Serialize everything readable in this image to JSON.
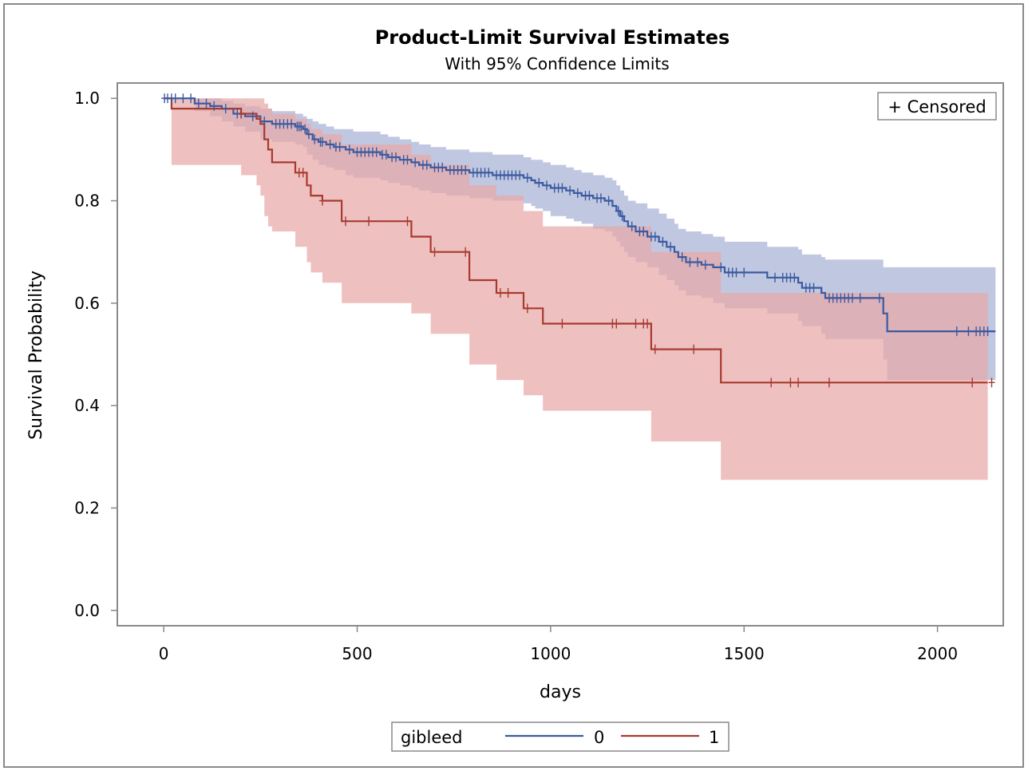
{
  "chart_data": {
    "type": "line",
    "title": "Product-Limit Survival Estimates",
    "subtitle": "With 95% Confidence Limits",
    "xlabel": "days",
    "ylabel": "Survival Probability",
    "xlim": [
      -120,
      2170
    ],
    "ylim": [
      -0.03,
      1.03
    ],
    "xticks": [
      0,
      500,
      1000,
      1500,
      2000
    ],
    "xtick_labels": [
      "0",
      "500",
      "1000",
      "1500",
      "2000"
    ],
    "yticks": [
      0.0,
      0.2,
      0.4,
      0.6,
      0.8,
      1.0
    ],
    "ytick_labels": [
      "0.0",
      "0.2",
      "0.4",
      "0.6",
      "0.8",
      "1.0"
    ],
    "inset_legend": "+ Censored",
    "legend": {
      "title": "gibleed",
      "placement": "bottom"
    },
    "series": [
      {
        "name": "0",
        "color": "#3a5aa0",
        "band_color": "#a7b2d4",
        "steps": [
          [
            0,
            1.0
          ],
          [
            80,
            0.99
          ],
          [
            120,
            0.985
          ],
          [
            150,
            0.98
          ],
          [
            180,
            0.97
          ],
          [
            210,
            0.965
          ],
          [
            250,
            0.955
          ],
          [
            280,
            0.95
          ],
          [
            340,
            0.945
          ],
          [
            360,
            0.94
          ],
          [
            370,
            0.93
          ],
          [
            385,
            0.92
          ],
          [
            400,
            0.915
          ],
          [
            420,
            0.91
          ],
          [
            440,
            0.905
          ],
          [
            470,
            0.9
          ],
          [
            490,
            0.895
          ],
          [
            560,
            0.89
          ],
          [
            580,
            0.885
          ],
          [
            610,
            0.88
          ],
          [
            640,
            0.875
          ],
          [
            660,
            0.87
          ],
          [
            690,
            0.865
          ],
          [
            730,
            0.86
          ],
          [
            790,
            0.855
          ],
          [
            850,
            0.85
          ],
          [
            930,
            0.845
          ],
          [
            950,
            0.84
          ],
          [
            960,
            0.835
          ],
          [
            980,
            0.83
          ],
          [
            1000,
            0.825
          ],
          [
            1040,
            0.82
          ],
          [
            1060,
            0.815
          ],
          [
            1080,
            0.81
          ],
          [
            1110,
            0.805
          ],
          [
            1140,
            0.8
          ],
          [
            1160,
            0.79
          ],
          [
            1170,
            0.78
          ],
          [
            1180,
            0.77
          ],
          [
            1190,
            0.76
          ],
          [
            1200,
            0.75
          ],
          [
            1220,
            0.74
          ],
          [
            1250,
            0.73
          ],
          [
            1280,
            0.72
          ],
          [
            1300,
            0.71
          ],
          [
            1320,
            0.7
          ],
          [
            1330,
            0.69
          ],
          [
            1350,
            0.68
          ],
          [
            1390,
            0.675
          ],
          [
            1420,
            0.67
          ],
          [
            1450,
            0.66
          ],
          [
            1560,
            0.65
          ],
          [
            1640,
            0.64
          ],
          [
            1650,
            0.63
          ],
          [
            1700,
            0.62
          ],
          [
            1710,
            0.61
          ],
          [
            1860,
            0.58
          ],
          [
            1870,
            0.545
          ],
          [
            2150,
            0.545
          ]
        ],
        "ci_steps": [
          [
            0,
            1.0,
            1.0
          ],
          [
            80,
            1.0,
            0.975
          ],
          [
            120,
            1.0,
            0.965
          ],
          [
            150,
            0.995,
            0.955
          ],
          [
            180,
            0.99,
            0.945
          ],
          [
            210,
            0.985,
            0.935
          ],
          [
            250,
            0.98,
            0.92
          ],
          [
            280,
            0.975,
            0.915
          ],
          [
            340,
            0.97,
            0.91
          ],
          [
            360,
            0.965,
            0.905
          ],
          [
            370,
            0.96,
            0.89
          ],
          [
            385,
            0.955,
            0.88
          ],
          [
            400,
            0.95,
            0.87
          ],
          [
            420,
            0.945,
            0.865
          ],
          [
            440,
            0.94,
            0.86
          ],
          [
            470,
            0.94,
            0.85
          ],
          [
            490,
            0.935,
            0.845
          ],
          [
            560,
            0.93,
            0.84
          ],
          [
            580,
            0.925,
            0.835
          ],
          [
            610,
            0.92,
            0.83
          ],
          [
            640,
            0.915,
            0.825
          ],
          [
            660,
            0.91,
            0.82
          ],
          [
            690,
            0.905,
            0.815
          ],
          [
            730,
            0.9,
            0.81
          ],
          [
            790,
            0.895,
            0.805
          ],
          [
            850,
            0.89,
            0.8
          ],
          [
            930,
            0.885,
            0.795
          ],
          [
            950,
            0.88,
            0.79
          ],
          [
            960,
            0.88,
            0.785
          ],
          [
            980,
            0.875,
            0.78
          ],
          [
            1000,
            0.87,
            0.77
          ],
          [
            1040,
            0.865,
            0.765
          ],
          [
            1060,
            0.86,
            0.76
          ],
          [
            1080,
            0.855,
            0.755
          ],
          [
            1110,
            0.85,
            0.745
          ],
          [
            1140,
            0.845,
            0.74
          ],
          [
            1160,
            0.84,
            0.73
          ],
          [
            1170,
            0.83,
            0.72
          ],
          [
            1180,
            0.82,
            0.71
          ],
          [
            1190,
            0.81,
            0.7
          ],
          [
            1200,
            0.8,
            0.69
          ],
          [
            1220,
            0.795,
            0.68
          ],
          [
            1250,
            0.785,
            0.67
          ],
          [
            1280,
            0.775,
            0.655
          ],
          [
            1300,
            0.765,
            0.645
          ],
          [
            1320,
            0.755,
            0.635
          ],
          [
            1330,
            0.745,
            0.625
          ],
          [
            1350,
            0.74,
            0.615
          ],
          [
            1390,
            0.735,
            0.61
          ],
          [
            1420,
            0.73,
            0.6
          ],
          [
            1450,
            0.72,
            0.59
          ],
          [
            1560,
            0.71,
            0.58
          ],
          [
            1640,
            0.705,
            0.565
          ],
          [
            1650,
            0.695,
            0.555
          ],
          [
            1700,
            0.69,
            0.54
          ],
          [
            1710,
            0.685,
            0.53
          ],
          [
            1860,
            0.67,
            0.49
          ],
          [
            1870,
            0.67,
            0.45
          ],
          [
            2150,
            0.67,
            0.39
          ]
        ],
        "censored": [
          2,
          10,
          20,
          30,
          50,
          70,
          90,
          110,
          130,
          160,
          190,
          200,
          230,
          260,
          290,
          300,
          310,
          320,
          330,
          345,
          350,
          355,
          365,
          375,
          390,
          405,
          410,
          430,
          445,
          455,
          480,
          500,
          510,
          520,
          530,
          540,
          550,
          565,
          575,
          590,
          600,
          620,
          630,
          650,
          670,
          680,
          700,
          710,
          720,
          740,
          750,
          760,
          770,
          780,
          800,
          810,
          820,
          830,
          840,
          860,
          870,
          880,
          890,
          900,
          910,
          920,
          940,
          970,
          990,
          1010,
          1020,
          1030,
          1050,
          1070,
          1090,
          1100,
          1120,
          1130,
          1150,
          1175,
          1185,
          1210,
          1230,
          1240,
          1260,
          1270,
          1290,
          1310,
          1340,
          1360,
          1380,
          1400,
          1440,
          1460,
          1470,
          1480,
          1500,
          1580,
          1600,
          1610,
          1620,
          1630,
          1660,
          1670,
          1680,
          1720,
          1730,
          1740,
          1750,
          1760,
          1770,
          1780,
          1800,
          1850,
          2050,
          2080,
          2100,
          2110,
          2120,
          2130
        ]
      },
      {
        "name": "1",
        "color": "#a83a30",
        "band_color": "#e7a9a8",
        "steps": [
          [
            0,
            1.0
          ],
          [
            20,
            0.98
          ],
          [
            200,
            0.97
          ],
          [
            240,
            0.96
          ],
          [
            250,
            0.95
          ],
          [
            260,
            0.92
          ],
          [
            270,
            0.9
          ],
          [
            280,
            0.875
          ],
          [
            340,
            0.855
          ],
          [
            370,
            0.83
          ],
          [
            380,
            0.81
          ],
          [
            410,
            0.8
          ],
          [
            460,
            0.76
          ],
          [
            640,
            0.73
          ],
          [
            690,
            0.7
          ],
          [
            790,
            0.645
          ],
          [
            860,
            0.62
          ],
          [
            930,
            0.59
          ],
          [
            980,
            0.56
          ],
          [
            1260,
            0.51
          ],
          [
            1440,
            0.445
          ],
          [
            2130,
            0.445
          ]
        ],
        "ci_steps": [
          [
            20,
            1.0,
            0.87
          ],
          [
            200,
            1.0,
            0.85
          ],
          [
            240,
            1.0,
            0.83
          ],
          [
            250,
            1.0,
            0.81
          ],
          [
            260,
            0.99,
            0.77
          ],
          [
            270,
            0.98,
            0.75
          ],
          [
            280,
            0.97,
            0.74
          ],
          [
            340,
            0.96,
            0.71
          ],
          [
            370,
            0.95,
            0.68
          ],
          [
            380,
            0.94,
            0.66
          ],
          [
            410,
            0.93,
            0.64
          ],
          [
            460,
            0.91,
            0.6
          ],
          [
            640,
            0.89,
            0.58
          ],
          [
            690,
            0.87,
            0.54
          ],
          [
            790,
            0.83,
            0.48
          ],
          [
            860,
            0.81,
            0.45
          ],
          [
            930,
            0.78,
            0.42
          ],
          [
            980,
            0.75,
            0.39
          ],
          [
            1260,
            0.7,
            0.33
          ],
          [
            1440,
            0.62,
            0.255
          ],
          [
            2130,
            0.62,
            0.255
          ]
        ],
        "censored": [
          200,
          350,
          360,
          410,
          470,
          530,
          630,
          700,
          780,
          870,
          890,
          940,
          1030,
          1160,
          1170,
          1220,
          1240,
          1250,
          1270,
          1370,
          1570,
          1620,
          1640,
          1720,
          2090,
          2140
        ]
      }
    ]
  }
}
